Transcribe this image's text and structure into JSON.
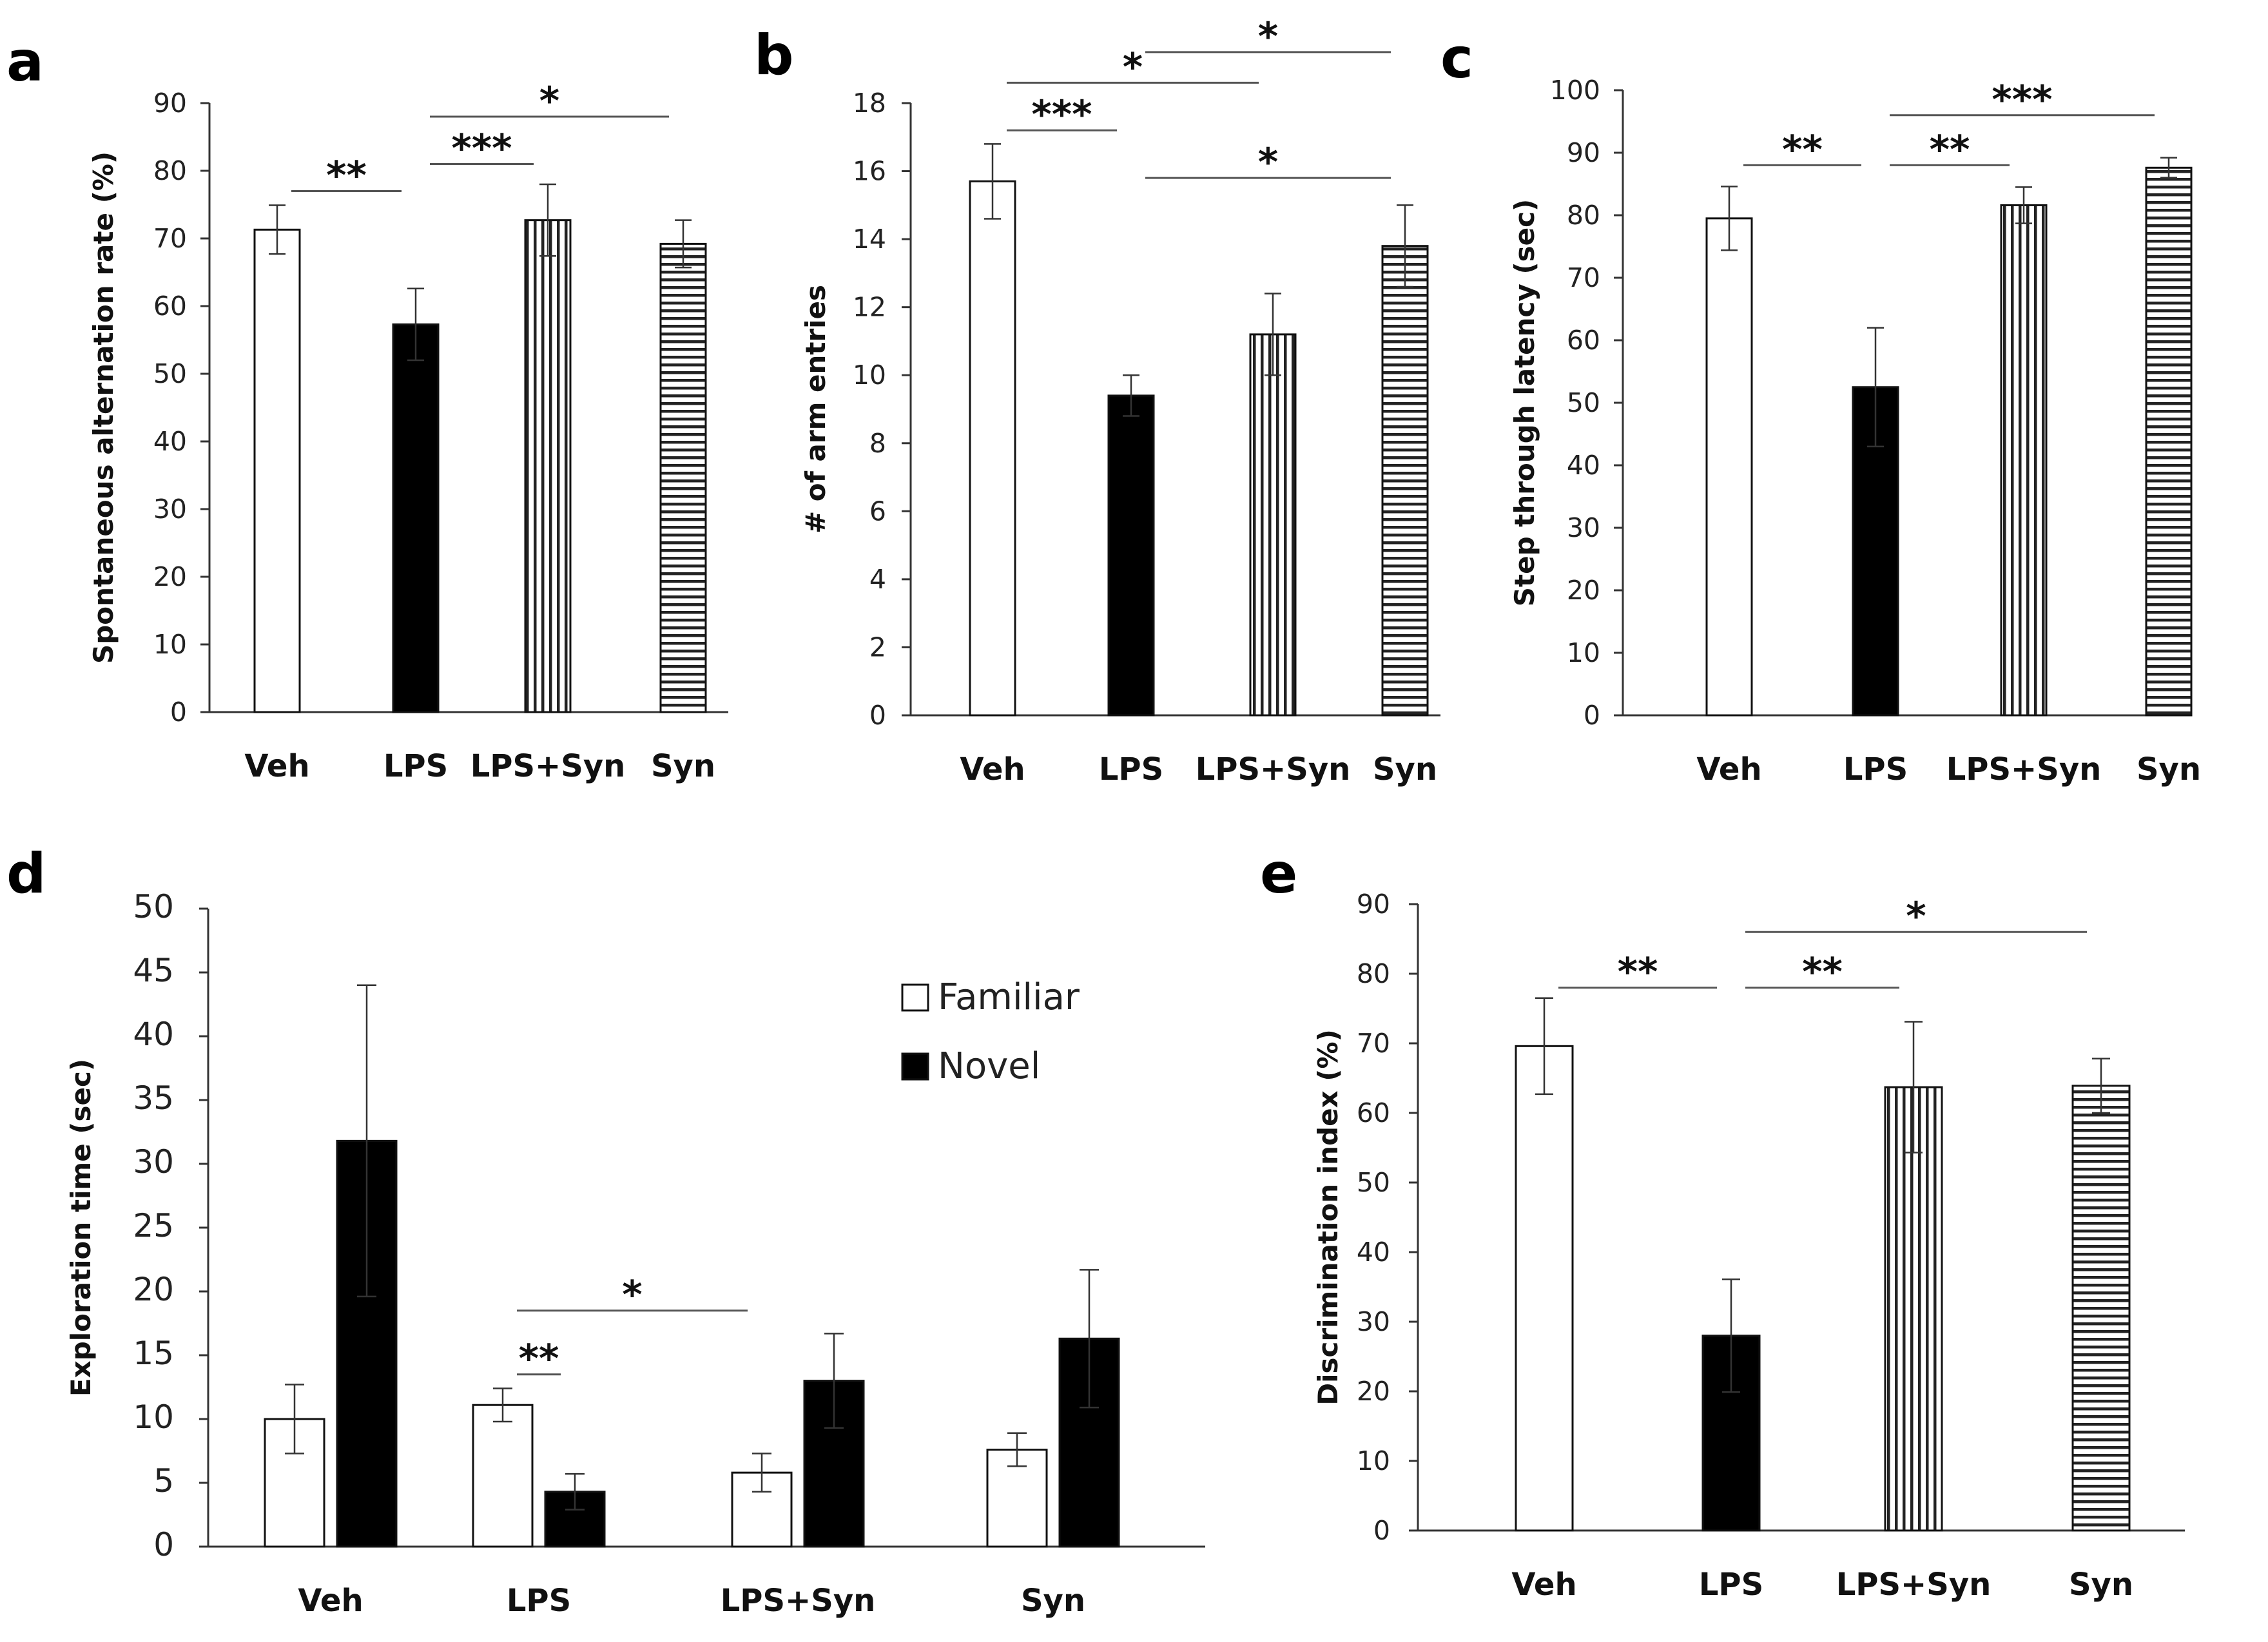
{
  "chart_data": [
    {
      "panel": "a",
      "type": "bar",
      "ylabel": "Spontaneous alternation rate (%)",
      "ylim": [
        0,
        90
      ],
      "yticks": [
        0,
        10,
        20,
        30,
        40,
        50,
        60,
        70,
        80,
        90
      ],
      "categories": [
        "Veh",
        "LPS",
        "LPS+Syn",
        "Syn"
      ],
      "values": [
        71.3,
        57.3,
        72.7,
        69.2
      ],
      "errors": [
        3.6,
        5.3,
        5.3,
        3.5
      ],
      "fills": [
        "white",
        "black",
        "vertical",
        "horizontal"
      ],
      "significance": [
        {
          "from": 0,
          "to": 1,
          "label": "**",
          "y": 77
        },
        {
          "from": 1,
          "to": 2,
          "label": "***",
          "y": 81
        },
        {
          "from": 1,
          "to": 3,
          "label": "*",
          "y": 88
        }
      ]
    },
    {
      "panel": "b",
      "type": "bar",
      "ylabel": "# of arm entries",
      "ylim": [
        0,
        18
      ],
      "yticks": [
        0,
        2,
        4,
        6,
        8,
        10,
        12,
        14,
        16,
        18
      ],
      "categories": [
        "Veh",
        "LPS",
        "LPS+Syn",
        "Syn"
      ],
      "values": [
        15.7,
        9.4,
        11.2,
        13.8
      ],
      "errors": [
        1.1,
        0.6,
        1.2,
        1.2
      ],
      "fills": [
        "white",
        "black",
        "vertical",
        "horizontal"
      ],
      "significance": [
        {
          "from": 0,
          "to": 1,
          "label": "***",
          "y": 17.2
        },
        {
          "from": 0,
          "to": 2,
          "label": "*",
          "y": 18.6
        },
        {
          "from": 1,
          "to": 3,
          "label": "*",
          "y": 19.5
        },
        {
          "from": 1,
          "to": 3,
          "label": "*",
          "y": 15.8
        }
      ]
    },
    {
      "panel": "c",
      "type": "bar",
      "ylabel": "Step through latency (sec)",
      "ylim": [
        0,
        100
      ],
      "yticks": [
        0,
        10,
        20,
        30,
        40,
        50,
        60,
        70,
        80,
        90,
        100
      ],
      "categories": [
        "Veh",
        "LPS",
        "LPS+Syn",
        "Syn"
      ],
      "values": [
        79.5,
        52.5,
        81.6,
        87.6
      ],
      "errors": [
        5.1,
        9.5,
        2.9,
        1.6
      ],
      "fills": [
        "white",
        "black",
        "vertical",
        "horizontal"
      ],
      "significance": [
        {
          "from": 0,
          "to": 1,
          "label": "**",
          "y": 88
        },
        {
          "from": 1,
          "to": 2,
          "label": "**",
          "y": 88
        },
        {
          "from": 1,
          "to": 3,
          "label": "***",
          "y": 96
        }
      ]
    },
    {
      "panel": "d",
      "type": "bar",
      "ylabel": "Exploration time (sec)",
      "ylim": [
        0,
        50
      ],
      "yticks": [
        0,
        5,
        10,
        15,
        20,
        25,
        30,
        35,
        40,
        45,
        50
      ],
      "categories": [
        "Veh",
        "LPS",
        "LPS+Syn",
        "Syn"
      ],
      "series": [
        {
          "name": "Familiar",
          "values": [
            10.0,
            11.1,
            5.8,
            7.6
          ],
          "errors": [
            2.7,
            1.3,
            1.5,
            1.3
          ],
          "fill": "white"
        },
        {
          "name": "Novel",
          "values": [
            31.8,
            4.3,
            13.0,
            16.3
          ],
          "errors": [
            12.2,
            1.4,
            3.7,
            5.4
          ],
          "fill": "black"
        }
      ],
      "legend": "top-right",
      "significance": [
        {
          "from": [
            1,
            0
          ],
          "to": [
            1,
            1
          ],
          "label": "**",
          "y": 13.5
        },
        {
          "from": [
            1,
            0
          ],
          "to": [
            2,
            0
          ],
          "label": "*",
          "y": 18.5
        }
      ]
    },
    {
      "panel": "e",
      "type": "bar",
      "ylabel": "Discrimination index (%)",
      "ylim": [
        0,
        90
      ],
      "yticks": [
        0,
        10,
        20,
        30,
        40,
        50,
        60,
        70,
        80,
        90
      ],
      "categories": [
        "Veh",
        "LPS",
        "LPS+Syn",
        "Syn"
      ],
      "values": [
        69.6,
        28.0,
        63.7,
        63.9
      ],
      "errors": [
        6.9,
        8.1,
        9.4,
        3.9
      ],
      "fills": [
        "white",
        "black",
        "vertical",
        "horizontal"
      ],
      "significance": [
        {
          "from": 0,
          "to": 1,
          "label": "**",
          "y": 78
        },
        {
          "from": 1,
          "to": 2,
          "label": "**",
          "y": 78
        },
        {
          "from": 1,
          "to": 3,
          "label": "*",
          "y": 86
        }
      ]
    }
  ]
}
